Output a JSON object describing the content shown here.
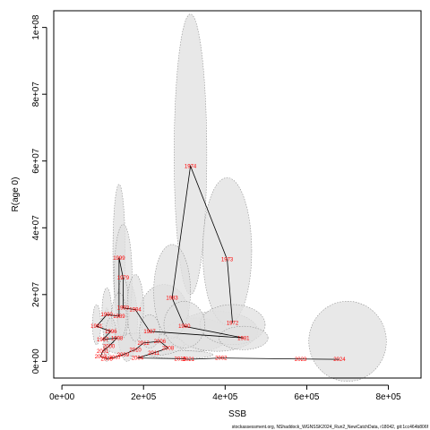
{
  "chart_data": {
    "type": "scatter",
    "title": "",
    "xlabel": "SSB",
    "ylabel": "R(age 0)",
    "xlim": [
      -20000,
      880000
    ],
    "ylim": [
      -5000000,
      105000000
    ],
    "x_ticks": [
      0,
      200000,
      400000,
      600000,
      800000
    ],
    "x_tick_labels": [
      "0e+00",
      "2e+05",
      "4e+05",
      "6e+05",
      "8e+05"
    ],
    "y_ticks": [
      0,
      20000000,
      40000000,
      60000000,
      80000000,
      100000000
    ],
    "y_tick_labels": [
      "0e+00",
      "2e+07",
      "4e+07",
      "6e+07",
      "8e+07",
      "1e+08"
    ],
    "grid": false,
    "legend": "none",
    "colors": {
      "point_labels": "#ff0000",
      "trajectory": "#000000",
      "ellipse_fill": "#e0e0e0",
      "ellipse_stroke": "#909090"
    },
    "points": [
      {
        "year": "1974",
        "ssb": 315000,
        "rec": 58500000,
        "ci": {
          "a": 40000,
          "b": 42000000,
          "cy": 62000000
        }
      },
      {
        "year": "1973",
        "ssb": 405000,
        "rec": 30500000,
        "ci": {
          "a": 60000,
          "b": 22000000,
          "cy": 33000000
        }
      },
      {
        "year": "1972",
        "ssb": 418000,
        "rec": 11500000,
        "ci": {
          "a": 80000,
          "b": 6000000,
          "cy": 11000000
        }
      },
      {
        "year": "1981",
        "ssb": 445000,
        "rec": 7000000,
        "ci": {
          "a": 60000,
          "b": 3500000,
          "cy": 7000000
        }
      },
      {
        "year": "1983",
        "ssb": 270000,
        "rec": 19000000,
        "ci": {
          "a": 45000,
          "b": 14000000,
          "cy": 21000000
        }
      },
      {
        "year": "1980",
        "ssb": 300000,
        "rec": 10500000,
        "ci": {
          "a": 50000,
          "b": 7000000,
          "cy": 11000000
        }
      },
      {
        "year": "1999",
        "ssb": 140000,
        "rec": 31000000,
        "ci": {
          "a": 15000,
          "b": 20000000,
          "cy": 33000000
        }
      },
      {
        "year": "1979",
        "ssb": 150000,
        "rec": 25000000,
        "ci": {
          "a": 22000,
          "b": 16000000,
          "cy": 25000000
        }
      },
      {
        "year": "1993",
        "ssb": 150000,
        "rec": 16000000,
        "ci": {
          "a": 14000,
          "b": 9000000,
          "cy": 16000000
        }
      },
      {
        "year": "1994",
        "ssb": 180000,
        "rec": 15500000,
        "ci": {
          "a": 20000,
          "b": 10000000,
          "cy": 16000000
        }
      },
      {
        "year": "1987",
        "ssb": 215000,
        "rec": 9000000,
        "ci": {
          "a": 25000,
          "b": 5000000,
          "cy": 9000000
        }
      },
      {
        "year": "1989",
        "ssb": 140000,
        "rec": 13500000,
        "ci": {
          "a": 18000,
          "b": 7000000,
          "cy": 13500000
        }
      },
      {
        "year": "1990",
        "ssb": 110000,
        "rec": 14000000,
        "ci": {
          "a": 12000,
          "b": 8000000,
          "cy": 14000000
        }
      },
      {
        "year": "1991",
        "ssb": 85000,
        "rec": 10500000,
        "ci": {
          "a": 10000,
          "b": 6000000,
          "cy": 11000000
        }
      },
      {
        "year": "1996",
        "ssb": 120000,
        "rec": 9000000,
        "ci": {
          "a": 12000,
          "b": 4000000,
          "cy": 9000000
        }
      },
      {
        "year": "1997",
        "ssb": 100000,
        "rec": 6500000
      },
      {
        "year": "1998",
        "ssb": 135000,
        "rec": 7000000
      },
      {
        "year": "2000",
        "ssb": 115000,
        "rec": 4500000
      },
      {
        "year": "2001",
        "ssb": 100000,
        "rec": 3000000
      },
      {
        "year": "2003",
        "ssb": 95000,
        "rec": 1500000
      },
      {
        "year": "2005",
        "ssb": 110000,
        "rec": 800000
      },
      {
        "year": "2007",
        "ssb": 130000,
        "rec": 1200000
      },
      {
        "year": "2009",
        "ssb": 150000,
        "rec": 2000000
      },
      {
        "year": "2010",
        "ssb": 180000,
        "rec": 3500000
      },
      {
        "year": "2012",
        "ssb": 200000,
        "rec": 5500000
      },
      {
        "year": "2004",
        "ssb": 185000,
        "rec": 1000000
      },
      {
        "year": "2006",
        "ssb": 240000,
        "rec": 6000000
      },
      {
        "year": "2008",
        "ssb": 260000,
        "rec": 4000000
      },
      {
        "year": "2011",
        "ssb": 225000,
        "rec": 2500000
      },
      {
        "year": "2015",
        "ssb": 290000,
        "rec": 800000
      },
      {
        "year": "2021",
        "ssb": 310000,
        "rec": 600000
      },
      {
        "year": "2002",
        "ssb": 390000,
        "rec": 1000000
      },
      {
        "year": "2023",
        "ssb": 585000,
        "rec": 700000
      },
      {
        "year": "2024",
        "ssb": 680000,
        "rec": 600000
      }
    ],
    "extra_ellipses": [
      {
        "cx": 110000,
        "cy": 8000000,
        "a": 8000,
        "b": 8000000
      },
      {
        "cx": 160000,
        "cy": 12000000,
        "a": 25000,
        "b": 12000000
      },
      {
        "cx": 250000,
        "cy": 14000000,
        "a": 60000,
        "b": 9000000
      },
      {
        "cx": 330000,
        "cy": 8000000,
        "a": 80000,
        "b": 5000000
      },
      {
        "cx": 380000,
        "cy": 9000000,
        "a": 100000,
        "b": 6000000
      },
      {
        "cx": 700000,
        "cy": 6000000,
        "a": 95000,
        "b": 12000000
      },
      {
        "cx": 290000,
        "cy": 2000000,
        "a": 80000,
        "b": 1200000
      },
      {
        "cx": 200000,
        "cy": 5000000,
        "a": 100000,
        "b": 3500000
      }
    ],
    "trajectory_order": [
      "1972",
      "1973",
      "1974",
      "1983",
      "1980",
      "1981",
      "1987",
      "1994",
      "1993",
      "1979",
      "1999",
      "1989",
      "1990",
      "1991",
      "1996",
      "1997",
      "1998",
      "2000",
      "2001",
      "2003",
      "2005",
      "2007",
      "2009",
      "2010",
      "2012",
      "2006",
      "2008",
      "2011",
      "2004",
      "2015",
      "2021",
      "2002",
      "2023",
      "2024"
    ]
  },
  "footer": "stockassessment.org, NShaddock_WGNSSK2024_Run2_NewCatchData, r18042, git:1cc464b806f"
}
